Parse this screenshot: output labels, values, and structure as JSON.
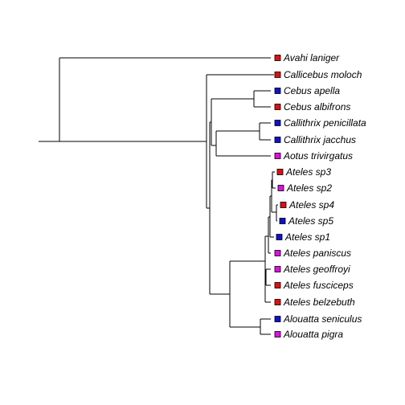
{
  "tree": {
    "tips": [
      {
        "label": "Avahi laniger",
        "color": "#dd1111"
      },
      {
        "label": "Callicebus moloch",
        "color": "#dd1111"
      },
      {
        "label": "Cebus apella",
        "color": "#1111cc"
      },
      {
        "label": "Cebus albifrons",
        "color": "#dd1111"
      },
      {
        "label": "Callithrix penicillata",
        "color": "#1111cc"
      },
      {
        "label": "Callithrix jacchus",
        "color": "#1111cc"
      },
      {
        "label": "Aotus trivirgatus",
        "color": "#dd11dd"
      },
      {
        "label": "Ateles sp3",
        "color": "#dd1111"
      },
      {
        "label": "Ateles sp2",
        "color": "#dd11dd"
      },
      {
        "label": "Ateles sp4",
        "color": "#dd1111"
      },
      {
        "label": "Ateles sp5",
        "color": "#1111cc"
      },
      {
        "label": "Ateles sp1",
        "color": "#1111cc"
      },
      {
        "label": "Ateles paniscus",
        "color": "#dd11dd"
      },
      {
        "label": "Ateles geoffroyi",
        "color": "#dd11dd"
      },
      {
        "label": "Ateles fusciceps",
        "color": "#dd1111"
      },
      {
        "label": "Ateles belzebuth",
        "color": "#dd1111"
      },
      {
        "label": "Alouatta seniculus",
        "color": "#1111cc"
      },
      {
        "label": "Alouatta pigra",
        "color": "#dd11dd"
      }
    ]
  }
}
